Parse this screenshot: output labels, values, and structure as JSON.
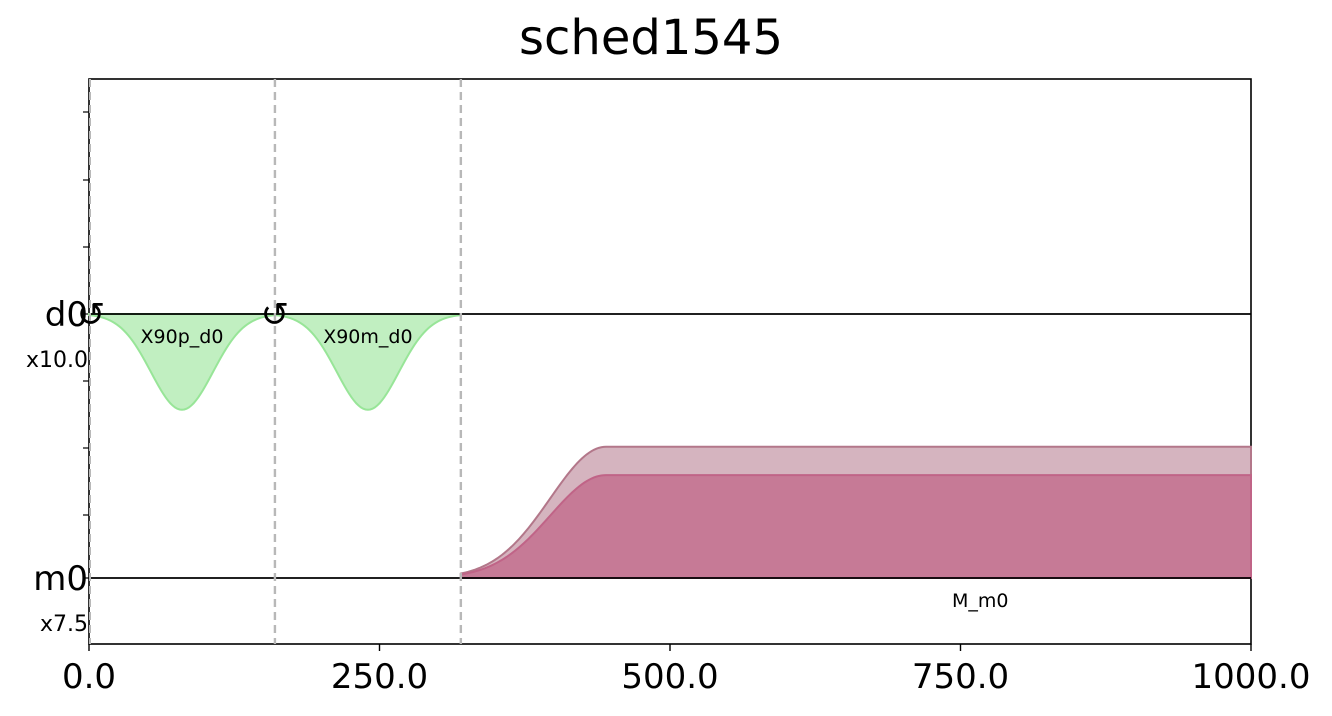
{
  "chart_data": {
    "type": "area",
    "title": "sched1545",
    "xlabel": "",
    "ylabel": "",
    "xlim": [
      0,
      1000
    ],
    "x_ticks": [
      0,
      250,
      500,
      750,
      1000
    ],
    "x_tick_labels": [
      "0.0",
      "250.0",
      "500.0",
      "750.0",
      "1000.0"
    ],
    "barriers": [
      160,
      320
    ],
    "channels": [
      {
        "name": "d0",
        "scale": "x10.0",
        "color": "#98e598"
      },
      {
        "name": "m0",
        "scale": "x7.5",
        "color": "#c06487"
      }
    ],
    "pulses": [
      {
        "channel": "d0",
        "label": "X90p_d0",
        "shape": "gaussian",
        "start": 0,
        "end": 160,
        "amplitude": -0.72
      },
      {
        "channel": "d0",
        "label": "X90m_d0",
        "shape": "gaussian",
        "start": 160,
        "end": 320,
        "amplitude": -0.72
      },
      {
        "channel": "m0",
        "label": "M_m0",
        "shape": "gaussian_square",
        "start": 320,
        "rise_end": 445,
        "end": 1000,
        "real_amplitude": 0.98,
        "imag_amplitude": 1.25
      }
    ],
    "phase_shift_markers": [
      {
        "channel": "d0",
        "symbol": "↺",
        "time": 0
      },
      {
        "channel": "d0",
        "symbol": "↺",
        "time": 160
      }
    ],
    "grid": false,
    "legend": "none"
  }
}
